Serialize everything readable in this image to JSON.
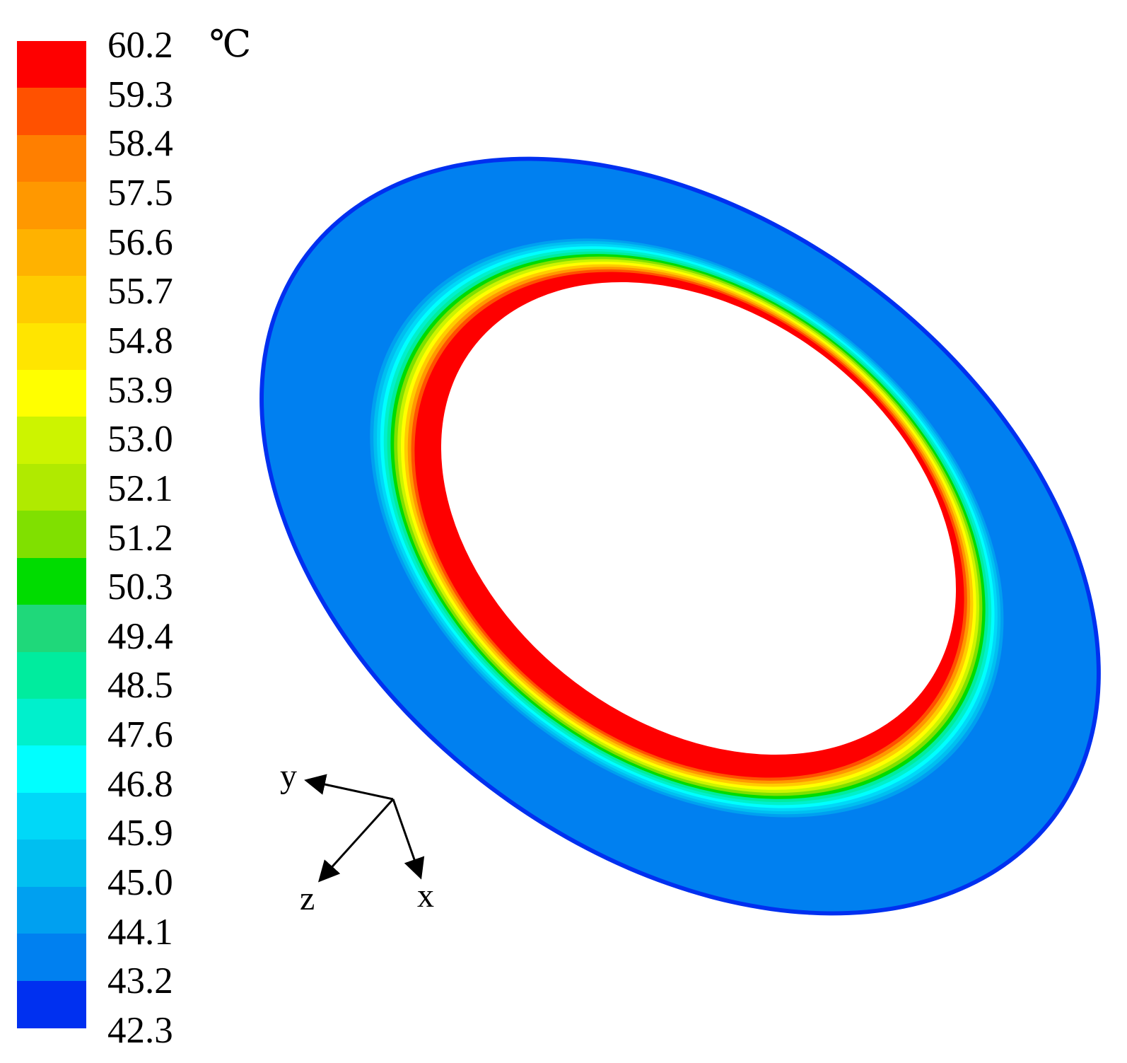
{
  "colorbar": {
    "unit": "℃",
    "ticks": [
      "60.2",
      "59.3",
      "58.4",
      "57.5",
      "56.6",
      "55.7",
      "54.8",
      "53.9",
      "53.0",
      "52.1",
      "51.2",
      "50.3",
      "49.4",
      "48.5",
      "47.6",
      "46.8",
      "45.9",
      "45.0",
      "44.1",
      "43.2",
      "42.3"
    ],
    "bands": [
      "#fe0000",
      "#ff5100",
      "#ff7f00",
      "#ff9800",
      "#ffb200",
      "#ffcc00",
      "#ffe500",
      "#ffff00",
      "#ccf400",
      "#b0ea00",
      "#80e000",
      "#00dc00",
      "#1fd87a",
      "#00ec9e",
      "#00f0cc",
      "#00ffff",
      "#00d8f8",
      "#00bff0",
      "#00a0f0",
      "#0080f0",
      "#0030f0"
    ]
  },
  "axes": {
    "x": "x",
    "y": "y",
    "z": "z"
  },
  "contour_rings": [
    "#0080f0",
    "#00a0f0",
    "#00bff0",
    "#00d8f8",
    "#00ffff",
    "#00f0cc",
    "#00ec9e",
    "#00dc00",
    "#80e000",
    "#ccf400",
    "#ffff00",
    "#ffcc00",
    "#ff9800",
    "#ff5100",
    "#fe0000"
  ],
  "edge_color": "#0030f0"
}
